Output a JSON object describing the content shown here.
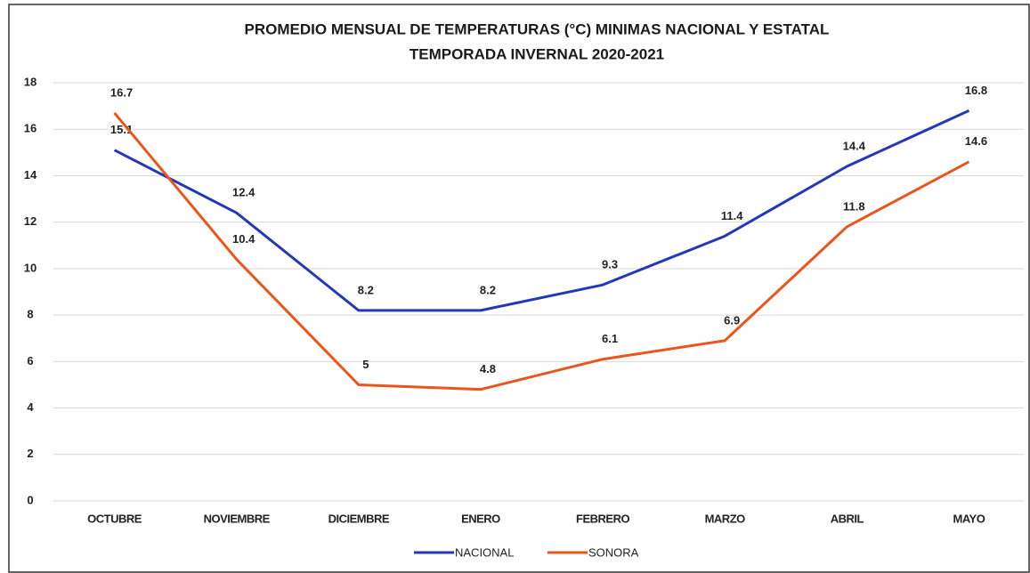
{
  "chart_data": {
    "type": "line",
    "title": "PROMEDIO MENSUAL DE TEMPERATURAS (°C) MINIMAS NACIONAL Y ESTATAL",
    "subtitle": "TEMPORADA INVERNAL 2020-2021",
    "categories": [
      "OCTUBRE",
      "NOVIEMBRE",
      "DICIEMBRE",
      "ENERO",
      "FEBRERO",
      "MARZO",
      "ABRIL",
      "MAYO"
    ],
    "series": [
      {
        "name": "NACIONAL",
        "color": "#2338b8",
        "values": [
          15.1,
          12.4,
          8.2,
          8.2,
          9.3,
          11.4,
          14.4,
          16.8
        ]
      },
      {
        "name": "SONORA",
        "color": "#e8561c",
        "values": [
          16.7,
          10.4,
          5,
          4.8,
          6.1,
          6.9,
          11.8,
          14.6
        ]
      }
    ],
    "ylim": [
      0,
      18
    ],
    "yticks": [
      0,
      2,
      4,
      6,
      8,
      10,
      12,
      14,
      16,
      18
    ],
    "grid": true,
    "legend": "bottom"
  }
}
